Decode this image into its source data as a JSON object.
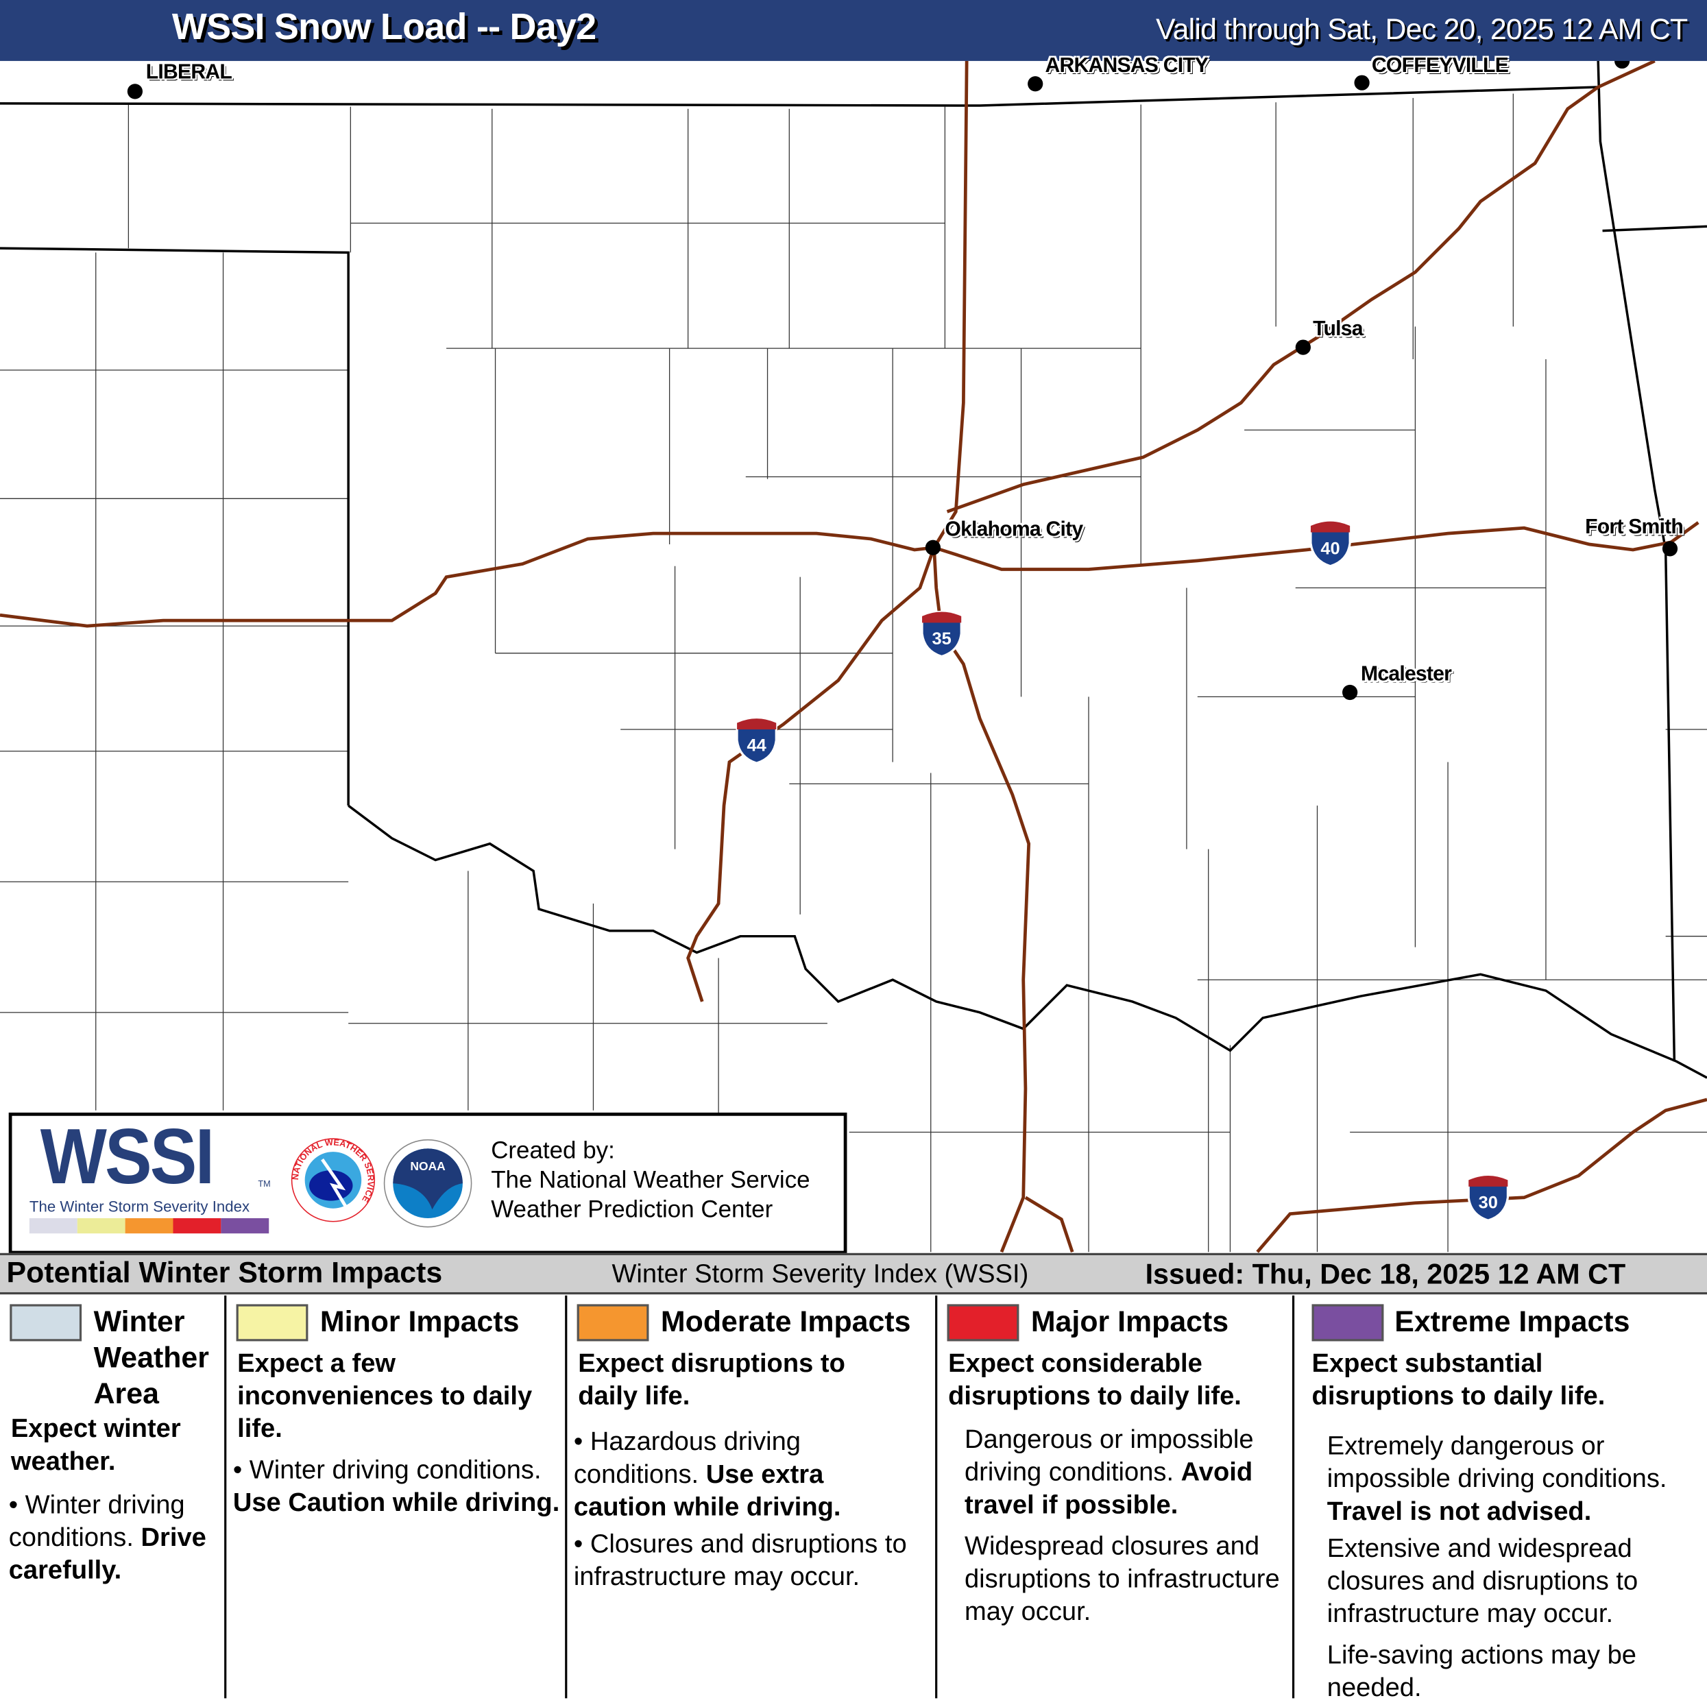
{
  "header": {
    "title": "WSSI Snow Load -- Day2",
    "valid": "Valid through Sat, Dec 20, 2025 12 AM CT"
  },
  "cities": [
    "LIBERAL",
    "ARKANSAS CITY",
    "COFFEYVILLE",
    "Tulsa",
    "Oklahoma City",
    "Fort Smith",
    "Mcalester"
  ],
  "interstates": [
    "35",
    "44",
    "40",
    "30"
  ],
  "colors": {
    "header": "#27407a",
    "interstate": "#7a2e0e",
    "winter": "#d0dde6",
    "minor": "#f6f3a4",
    "moderate": "#f5962f",
    "major": "#e3202a",
    "extreme": "#7a4fa0"
  },
  "logo": {
    "wssi": "WSSI",
    "tm": "TM",
    "subtitle": "The Winter Storm Severity Index",
    "nws": "NATIONAL WEATHER SERVICE",
    "noaa": "NOAA",
    "credit_1": "Created by:",
    "credit_2": "The National Weather Service",
    "credit_3": "Weather Prediction Center"
  },
  "legend_bar": {
    "title": "Potential Winter Storm Impacts",
    "index": "Winter Storm Severity Index (WSSI)",
    "issued": "Issued: Thu, Dec 18, 2025 12 AM CT"
  },
  "impacts": [
    {
      "title_1": "Winter",
      "title_2": "Weather",
      "title_3": "Area",
      "lead": "Expect winter weather.",
      "text": "Winter driving conditions.",
      "bold": "Drive carefully."
    },
    {
      "title": "Minor Impacts",
      "lead": "Expect a few inconveniences to daily life.",
      "text": "Winter driving conditions.",
      "bold": "Use Caution while driving."
    },
    {
      "title": "Moderate Impacts",
      "lead": "Expect disruptions to daily life.",
      "text": "Hazardous driving conditions.",
      "bold": "Use extra caution while driving.",
      "text2": "Closures and disruptions to infrastructure may occur."
    },
    {
      "title": "Major Impacts",
      "lead": "Expect considerable disruptions to daily life.",
      "text": "Dangerous or impossible driving conditions.",
      "bold": "Avoid travel if possible.",
      "text2": "Widespread closures and disruptions to infrastructure may occur."
    },
    {
      "title": "Extreme Impacts",
      "lead": "Expect substantial disruptions to daily life.",
      "text": "Extremely dangerous or impossible driving conditions.",
      "bold": "Travel is not advised.",
      "text2": "Extensive and widespread closures and disruptions to infrastructure may occur.",
      "text3": "Life-saving actions may be needed."
    }
  ]
}
